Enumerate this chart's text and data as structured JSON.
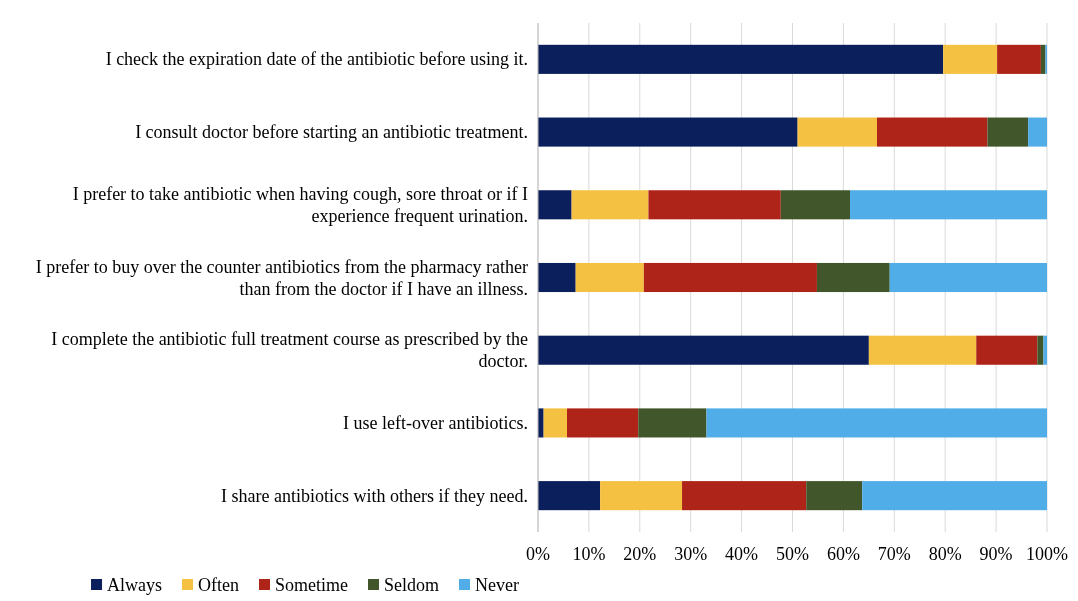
{
  "chart_data": {
    "type": "bar",
    "orientation": "horizontal",
    "stacked": true,
    "categories": [
      "I check the expiration date of the antibiotic before using it.",
      "I consult doctor before starting an antibiotic treatment.",
      "I prefer to take antibiotic when having cough, sore throat or if I experience frequent urination.",
      "I prefer to buy over the counter antibiotics from the pharmacy rather than from the doctor if I have an illness.",
      "I complete the antibiotic full treatment course as prescribed by the doctor.",
      "I use left-over antibiotics.",
      "I share antibiotics with others if they need."
    ],
    "series": [
      {
        "name": "Always",
        "color": "#0b1f5c",
        "values": [
          79.6,
          51.0,
          6.6,
          7.4,
          65.0,
          1.1,
          12.2
        ]
      },
      {
        "name": "Often",
        "color": "#f4c142",
        "values": [
          10.6,
          15.6,
          15.1,
          13.4,
          21.1,
          4.6,
          16.1
        ]
      },
      {
        "name": "Sometime",
        "color": "#af2418",
        "values": [
          8.6,
          21.7,
          26.0,
          34.0,
          12.0,
          14.0,
          24.4
        ]
      },
      {
        "name": "Seldom",
        "color": "#41572b",
        "values": [
          0.9,
          8.0,
          13.6,
          14.3,
          1.2,
          13.4,
          11.0
        ]
      },
      {
        "name": "Never",
        "color": "#50ade8",
        "values": [
          0.3,
          3.7,
          38.7,
          30.9,
          0.7,
          66.9,
          36.3
        ]
      }
    ],
    "xlim": [
      0,
      100
    ],
    "xticks": [
      {
        "value": 0,
        "label": "0%"
      },
      {
        "value": 10,
        "label": "10%"
      },
      {
        "value": 20,
        "label": "20%"
      },
      {
        "value": 30,
        "label": "30%"
      },
      {
        "value": 40,
        "label": "40%"
      },
      {
        "value": 50,
        "label": "50%"
      },
      {
        "value": 60,
        "label": "60%"
      },
      {
        "value": 70,
        "label": "70%"
      },
      {
        "value": 80,
        "label": "80%"
      },
      {
        "value": 90,
        "label": "90%"
      },
      {
        "value": 100,
        "label": "100%"
      }
    ],
    "grid": "x",
    "legend": "bottom"
  }
}
